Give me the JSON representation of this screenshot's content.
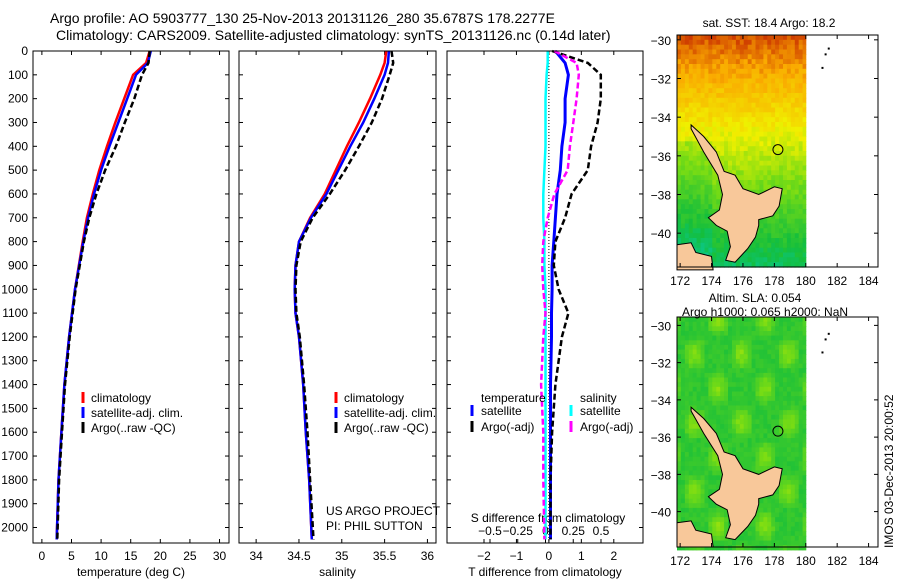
{
  "header": {
    "line1": "Argo profile: AO 5903777_130 25-Nov-2013 20131126_280 35.6787S 178.2277E",
    "line2": "Climatology: CARS2009. Satellite-adjusted climatology: synTS_20131126.nc (0.14d later)"
  },
  "credit": {
    "line1": "US ARGO PROJECT",
    "line2": "PI: PHIL SUTTON"
  },
  "stamp": "IMOS 03-Dec-2013 20:00:52",
  "colors": {
    "climatology": "#ff0000",
    "satellite": "#0000ff",
    "argo": "#000000",
    "sal_satellite": "#00ffff",
    "sal_argo": "#ff00ff",
    "land": "#f8c89a"
  },
  "chart_data": [
    {
      "type": "line",
      "id": "temperature",
      "xlabel": "temperature (deg C)",
      "ylabel": "",
      "xlim": [
        -1.5,
        31.6
      ],
      "ylim": [
        0,
        2065
      ],
      "xticks": [
        0,
        5,
        10,
        15,
        20,
        25,
        30
      ],
      "yticks": [
        0,
        100,
        200,
        300,
        400,
        500,
        600,
        700,
        800,
        900,
        1000,
        1100,
        1200,
        1300,
        1400,
        1500,
        1600,
        1700,
        1800,
        1900,
        2000
      ],
      "legend": [
        "climatology",
        "satellite-adj. clim.",
        "Argo(..raw -QC)"
      ],
      "depth": [
        0,
        50,
        100,
        200,
        300,
        400,
        500,
        600,
        700,
        800,
        1000,
        1200,
        1400,
        1600,
        1800,
        2050
      ],
      "series": [
        {
          "name": "climatology",
          "values": [
            18.2,
            17.6,
            15.4,
            13.9,
            12.4,
            11.0,
            9.7,
            8.6,
            7.6,
            6.9,
            5.6,
            4.6,
            3.8,
            3.3,
            2.8,
            2.5
          ]
        },
        {
          "name": "satellite-adj. clim.",
          "values": [
            18.4,
            17.9,
            15.9,
            14.4,
            12.9,
            11.4,
            10.0,
            8.8,
            7.8,
            7.0,
            5.6,
            4.6,
            3.8,
            3.3,
            2.8,
            2.5
          ]
        },
        {
          "name": "Argo(..raw -QC)",
          "values": [
            18.2,
            18.0,
            16.9,
            15.6,
            14.0,
            12.5,
            10.7,
            9.2,
            8.0,
            7.1,
            5.7,
            4.7,
            3.9,
            3.4,
            2.9,
            2.6
          ]
        }
      ]
    },
    {
      "type": "line",
      "id": "salinity",
      "xlabel": "salinity",
      "xlim": [
        33.8,
        36.1
      ],
      "ylim": [
        0,
        2065
      ],
      "xticks": [
        34,
        34.5,
        35,
        35.5,
        36
      ],
      "legend": [
        "climatology",
        "satellite-adj. clim.",
        "Argo(..raw -QC)"
      ],
      "depth": [
        0,
        50,
        100,
        200,
        300,
        400,
        500,
        600,
        700,
        800,
        900,
        1000,
        1100,
        1200,
        1400,
        1600,
        1800,
        2050
      ],
      "series": [
        {
          "name": "climatology",
          "values": [
            35.52,
            35.5,
            35.45,
            35.33,
            35.2,
            35.06,
            34.93,
            34.8,
            34.63,
            34.5,
            34.46,
            34.45,
            34.46,
            34.5,
            34.55,
            34.58,
            34.62,
            34.65
          ]
        },
        {
          "name": "satellite-adj. clim.",
          "values": [
            35.55,
            35.54,
            35.5,
            35.38,
            35.25,
            35.1,
            34.96,
            34.82,
            34.64,
            34.5,
            34.46,
            34.45,
            34.46,
            34.5,
            34.55,
            34.58,
            34.62,
            34.65
          ]
        },
        {
          "name": "Argo(..raw -QC)",
          "values": [
            35.58,
            35.6,
            35.56,
            35.47,
            35.35,
            35.2,
            35.04,
            34.86,
            34.66,
            34.52,
            34.47,
            34.46,
            34.47,
            34.51,
            34.56,
            34.6,
            34.63,
            34.67
          ]
        }
      ]
    },
    {
      "type": "line",
      "id": "difference",
      "xlabel": "T difference from climatology",
      "xlabel2": "S difference from climatology",
      "xlim": [
        -3.14,
        2.9
      ],
      "x2lim": [
        -0.5,
        0.5
      ],
      "ylim": [
        0,
        2065
      ],
      "xticks": [
        -2,
        -1,
        0,
        1,
        2
      ],
      "x2ticks": [
        -0.5,
        -0.25,
        0,
        0.25,
        0.5
      ],
      "legend_titles": [
        "temperature",
        "salinity"
      ],
      "legend": [
        "satellite",
        "Argo(-adj)",
        "satellite",
        "Argo(-adj)"
      ],
      "depth": [
        0,
        50,
        100,
        200,
        300,
        400,
        500,
        600,
        700,
        800,
        900,
        1000,
        1100,
        1200,
        1400,
        1600,
        1800,
        2050
      ],
      "series": [
        {
          "name": "T satellite",
          "values": [
            0.2,
            0.5,
            0.6,
            0.5,
            0.5,
            0.4,
            0.35,
            0.25,
            0.2,
            0.15,
            0.1,
            0.1,
            0.08,
            0.08,
            0.05,
            0.05,
            0.05,
            0.05
          ]
        },
        {
          "name": "T Argo(-adj)",
          "values": [
            0.1,
            1.2,
            1.6,
            1.6,
            1.5,
            1.3,
            1.2,
            0.7,
            0.5,
            0.2,
            0.15,
            0.3,
            0.6,
            0.4,
            0.2,
            0.1,
            0.05,
            0.05
          ]
        },
        {
          "name": "S satellite",
          "values": [
            0.02,
            0.02,
            0.01,
            0,
            0,
            0,
            -0.01,
            -0.02,
            -0.02,
            -0.01,
            -0.01,
            0,
            0,
            0,
            0,
            0,
            0,
            0
          ]
        },
        {
          "name": "S Argo(-adj)",
          "values": [
            0.08,
            0.28,
            0.3,
            0.28,
            0.25,
            0.22,
            0.2,
            0.08,
            0.02,
            -0.02,
            -0.03,
            -0.02,
            0,
            -0.02,
            -0.04,
            -0.02,
            -0.02,
            -0.01
          ]
        }
      ]
    },
    {
      "type": "heatmap",
      "id": "sst-map",
      "title": "sat. SST: 18.4 Argo: 18.2",
      "xlim": [
        171.8,
        184.6
      ],
      "ylim": [
        -41.75,
        -29.75
      ],
      "xticks": [
        172,
        174,
        176,
        178,
        180,
        182,
        184
      ],
      "yticks": [
        -30,
        -32,
        -34,
        -36,
        -38,
        -40
      ],
      "argo_position": [
        178.2277,
        -35.6787
      ]
    },
    {
      "type": "heatmap",
      "id": "sla-map",
      "title": "Altim. SLA: 0.054",
      "title2": "Argo h1000: 0.065 h2000: NaN",
      "xlim": [
        171.8,
        184.6
      ],
      "ylim": [
        -41.9,
        -29.55
      ],
      "xticks": [
        172,
        174,
        176,
        178,
        180,
        182,
        184
      ],
      "yticks": [
        -30,
        -32,
        -34,
        -36,
        -38,
        -40
      ],
      "argo_position": [
        178.2277,
        -35.6787
      ]
    }
  ]
}
